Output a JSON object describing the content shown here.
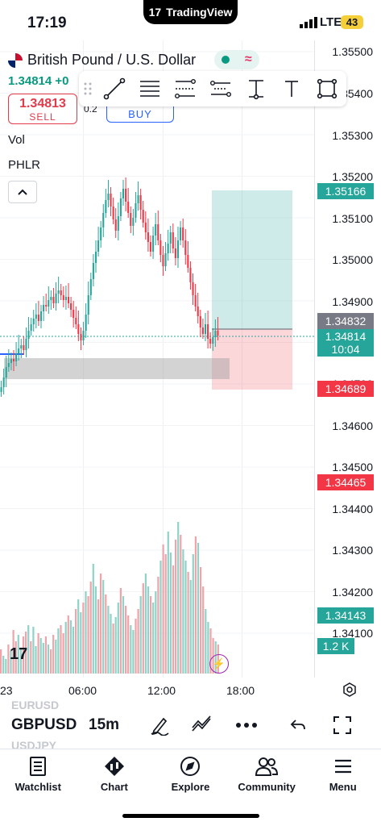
{
  "status_bar": {
    "time": "17:19",
    "app_pill": "TradingView",
    "network": "LTE",
    "battery": "43"
  },
  "symbol": {
    "title": "British Pound / U.S. Dollar",
    "last_price_line": "1.34814 +0"
  },
  "trade": {
    "sell_price": "1.34813",
    "sell_label": "SELL",
    "buy_label": "BUY",
    "spread": "0.2"
  },
  "indicators": {
    "vol": "Vol",
    "phlr": "PHLR"
  },
  "price_axis": {
    "labels": [
      "1.35500",
      "1.35400",
      "1.35300",
      "1.35200",
      "1.35100",
      "1.35000",
      "1.34900",
      "1.34800",
      "1.34700",
      "1.34600",
      "1.34500",
      "1.34400",
      "1.34300",
      "1.34200",
      "1.34100"
    ],
    "badges": [
      {
        "text": "1.35166",
        "color": "#26a69a"
      },
      {
        "text": "1.34832",
        "color": "#787b86"
      },
      {
        "text": "1.34814",
        "sub": "10:04",
        "color": "#26a69a"
      },
      {
        "text": "1.34689",
        "color": "#f23645"
      },
      {
        "text": "1.34465",
        "color": "#f23645"
      },
      {
        "text": "1.34143",
        "color": "#26a69a"
      },
      {
        "text": "1.2 K",
        "color": "#26a69a"
      }
    ]
  },
  "time_axis": {
    "labels": [
      "23",
      "06:00",
      "12:00",
      "18:00"
    ]
  },
  "bottom_bar": {
    "symbol": "GBPUSD",
    "interval": "15m",
    "ghost_prev": "EURUSD",
    "ghost_next": "USDJPY"
  },
  "tabs": [
    {
      "label": "Watchlist",
      "icon": "watchlist-icon"
    },
    {
      "label": "Chart",
      "icon": "chart-icon"
    },
    {
      "label": "Explore",
      "icon": "compass-icon"
    },
    {
      "label": "Community",
      "icon": "community-icon"
    },
    {
      "label": "Menu",
      "icon": "menu-icon"
    }
  ],
  "colors": {
    "up": "#26a69a",
    "down": "#f23645",
    "up_volume": "#8fd3c8",
    "down_volume": "#f0a3a8",
    "accent": "#2962ff"
  }
}
